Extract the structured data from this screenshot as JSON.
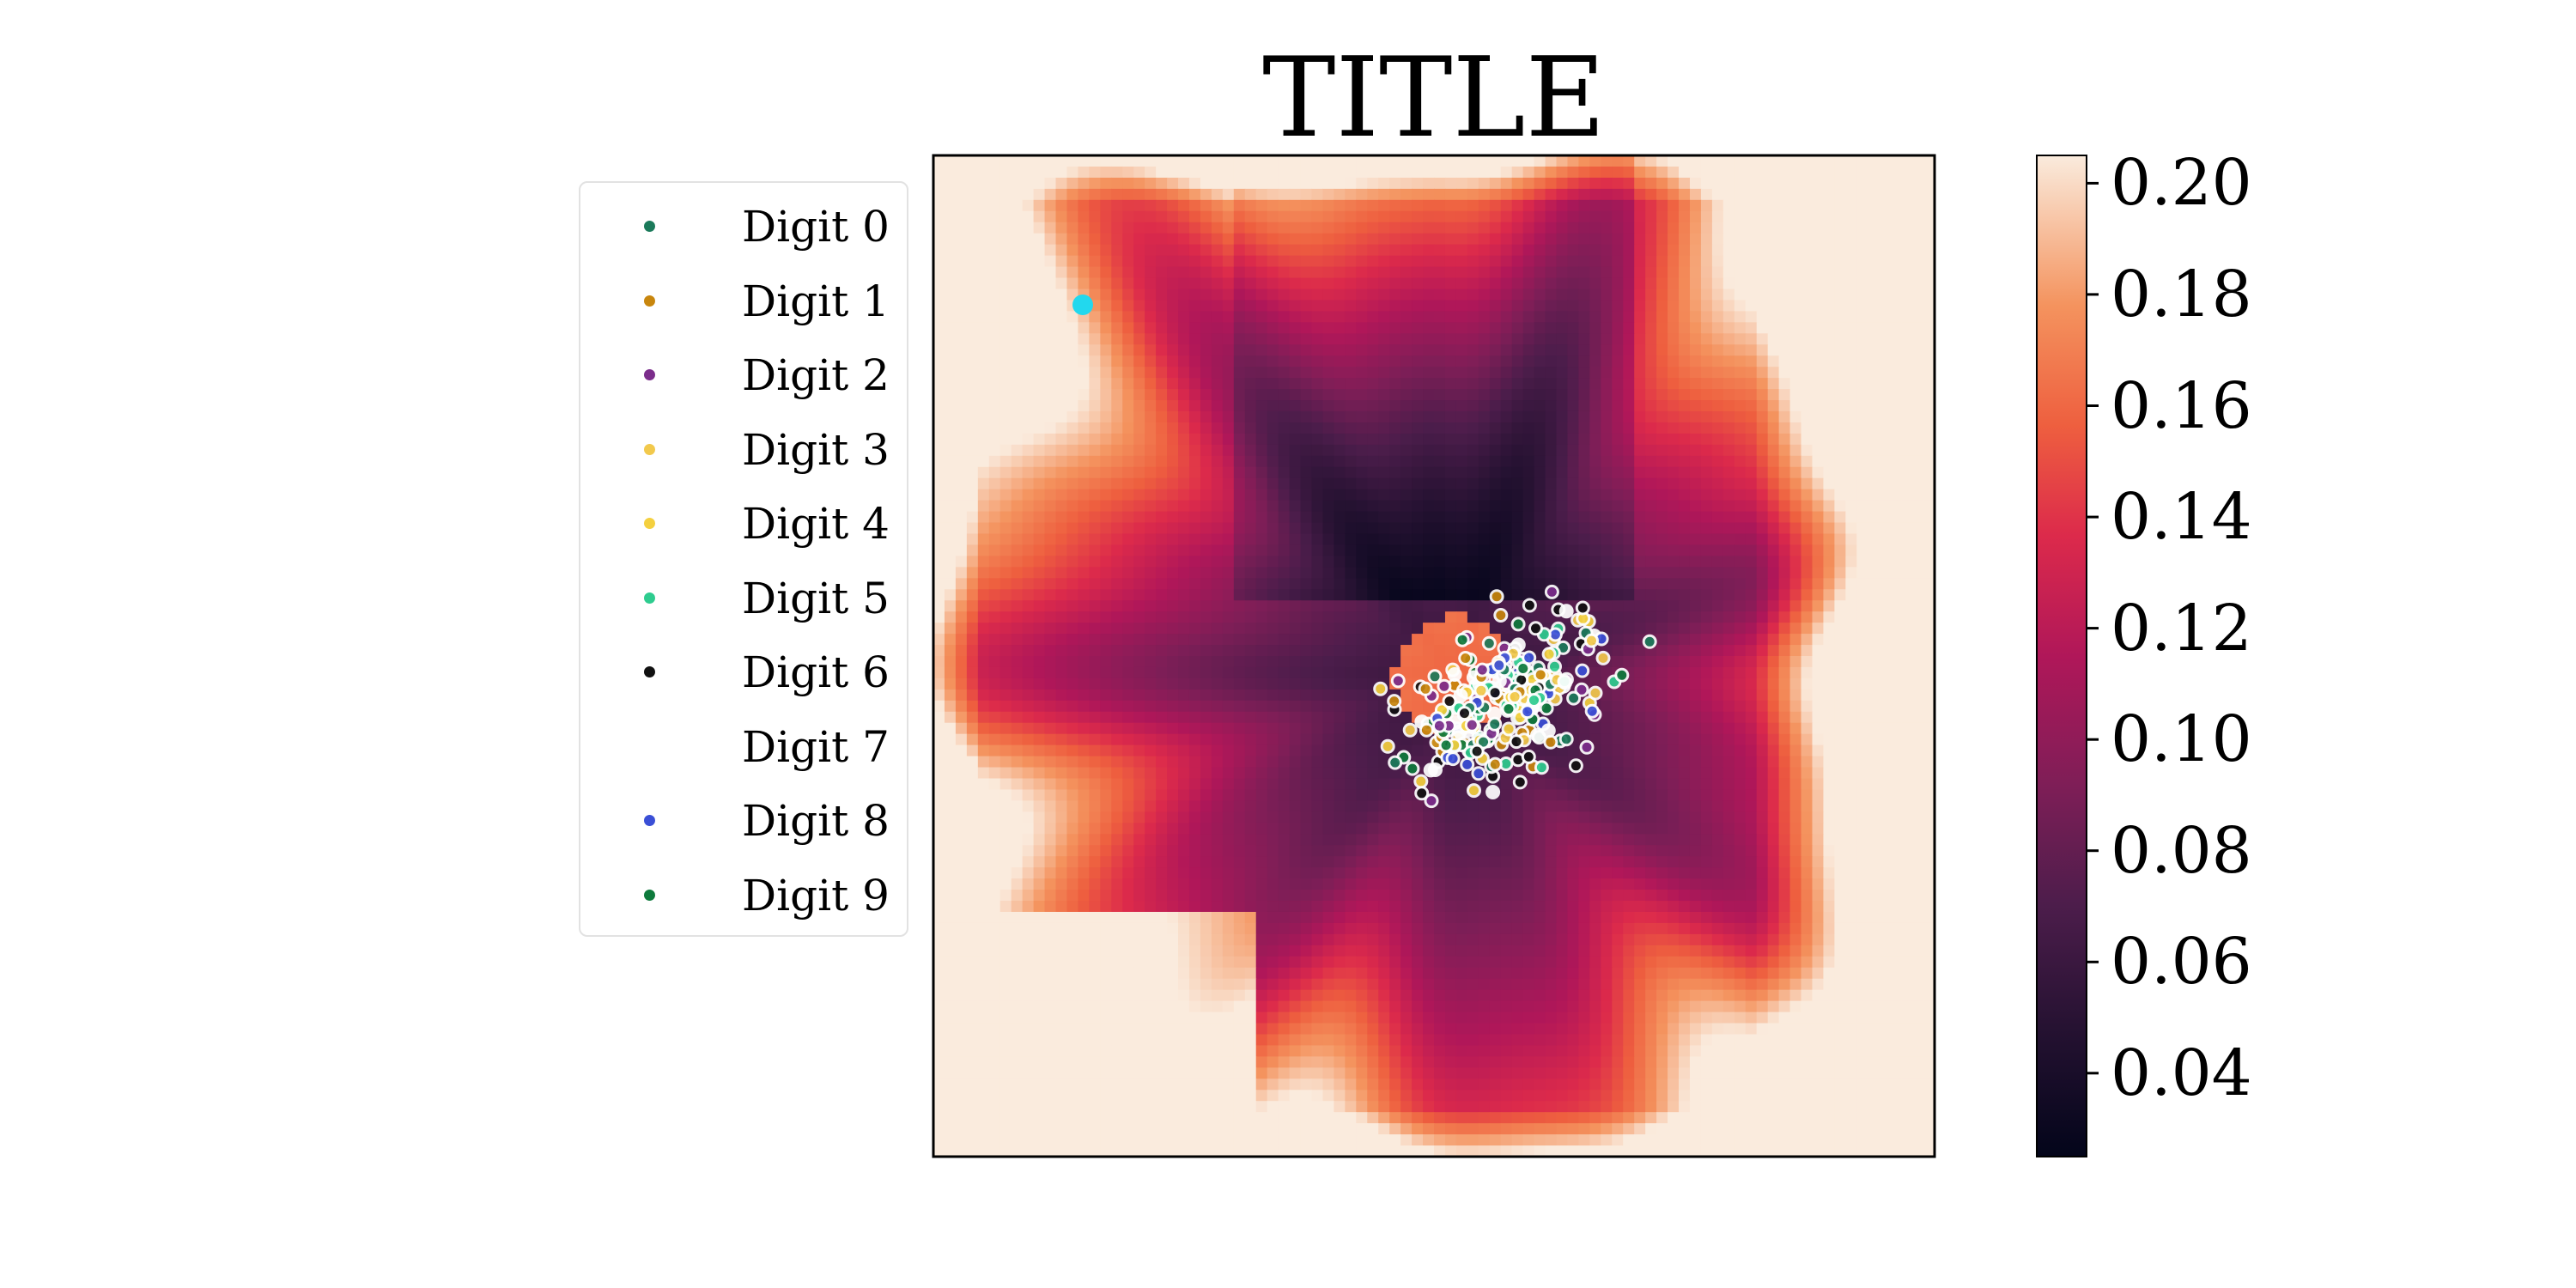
{
  "chart_data": {
    "type": "heatmap",
    "title": "TITLE",
    "xlabel": "",
    "ylabel": "",
    "x_ticks_visible": false,
    "y_ticks_visible": false,
    "colormap": "rocket",
    "colorbar": {
      "range": [
        0.025,
        0.205
      ],
      "ticks": [
        "0.04",
        "0.06",
        "0.08",
        "0.10",
        "0.12",
        "0.14",
        "0.16",
        "0.18",
        "0.20"
      ],
      "tick_values": [
        0.04,
        0.06,
        0.08,
        0.1,
        0.12,
        0.14,
        0.16,
        0.18,
        0.2
      ]
    },
    "legend": {
      "placement": "left, outside plot",
      "entries": [
        {
          "label": "Digit 0",
          "color": "#1b7a5a"
        },
        {
          "label": "Digit 1",
          "color": "#c8860d"
        },
        {
          "label": "Digit 2",
          "color": "#7b2d8b"
        },
        {
          "label": "Digit 3",
          "color": "#f2c94c"
        },
        {
          "label": "Digit 4",
          "color": "#f4d03f"
        },
        {
          "label": "Digit 5",
          "color": "#2ecc8f"
        },
        {
          "label": "Digit 6",
          "color": "#111111"
        },
        {
          "label": "Digit 7",
          "color": "#ffffff"
        },
        {
          "label": "Digit 8",
          "color": "#3a4fd6"
        },
        {
          "label": "Digit 9",
          "color": "#0e7a3c"
        }
      ]
    },
    "highlight_point": {
      "color": "#22d8ee"
    }
  }
}
